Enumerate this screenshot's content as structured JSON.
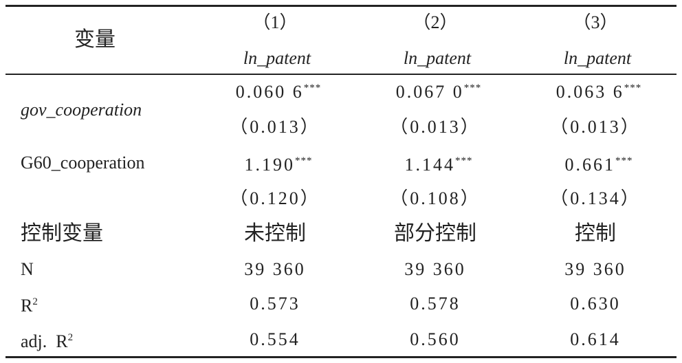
{
  "table": {
    "header": {
      "label": "变量",
      "columns": [
        {
          "number": "（1）",
          "dependent": "ln_patent"
        },
        {
          "number": "（2）",
          "dependent": "ln_patent"
        },
        {
          "number": "（3）",
          "dependent": "ln_patent"
        }
      ]
    },
    "rows": [
      {
        "label": "gov_cooperation",
        "coefficients": [
          {
            "value": "0.060 6",
            "stars": "***"
          },
          {
            "value": "0.067 0",
            "stars": "***"
          },
          {
            "value": "0.063 6",
            "stars": "***"
          }
        ],
        "standard_errors": [
          "（0.013）",
          "（0.013）",
          "（0.013）"
        ]
      },
      {
        "label": "G60_cooperation",
        "coefficients": [
          {
            "value": "1.190",
            "stars": "***"
          },
          {
            "value": "1.144",
            "stars": "***"
          },
          {
            "value": "0.661",
            "stars": "***"
          }
        ],
        "standard_errors": [
          "（0.120）",
          "（0.108）",
          "（0.134）"
        ]
      }
    ],
    "controls": {
      "label": "控制变量",
      "cells": [
        "未控制",
        "部分控制",
        "控制"
      ]
    },
    "stats": [
      {
        "label": "N",
        "cells": [
          "39 360",
          "39 360",
          "39 360"
        ]
      },
      {
        "label": "R",
        "label_sup": "2",
        "cells": [
          "0.573",
          "0.578",
          "0.630"
        ]
      },
      {
        "label": "adj.  R",
        "label_sup": "2",
        "cells": [
          "0.554",
          "0.560",
          "0.614"
        ]
      }
    ]
  }
}
